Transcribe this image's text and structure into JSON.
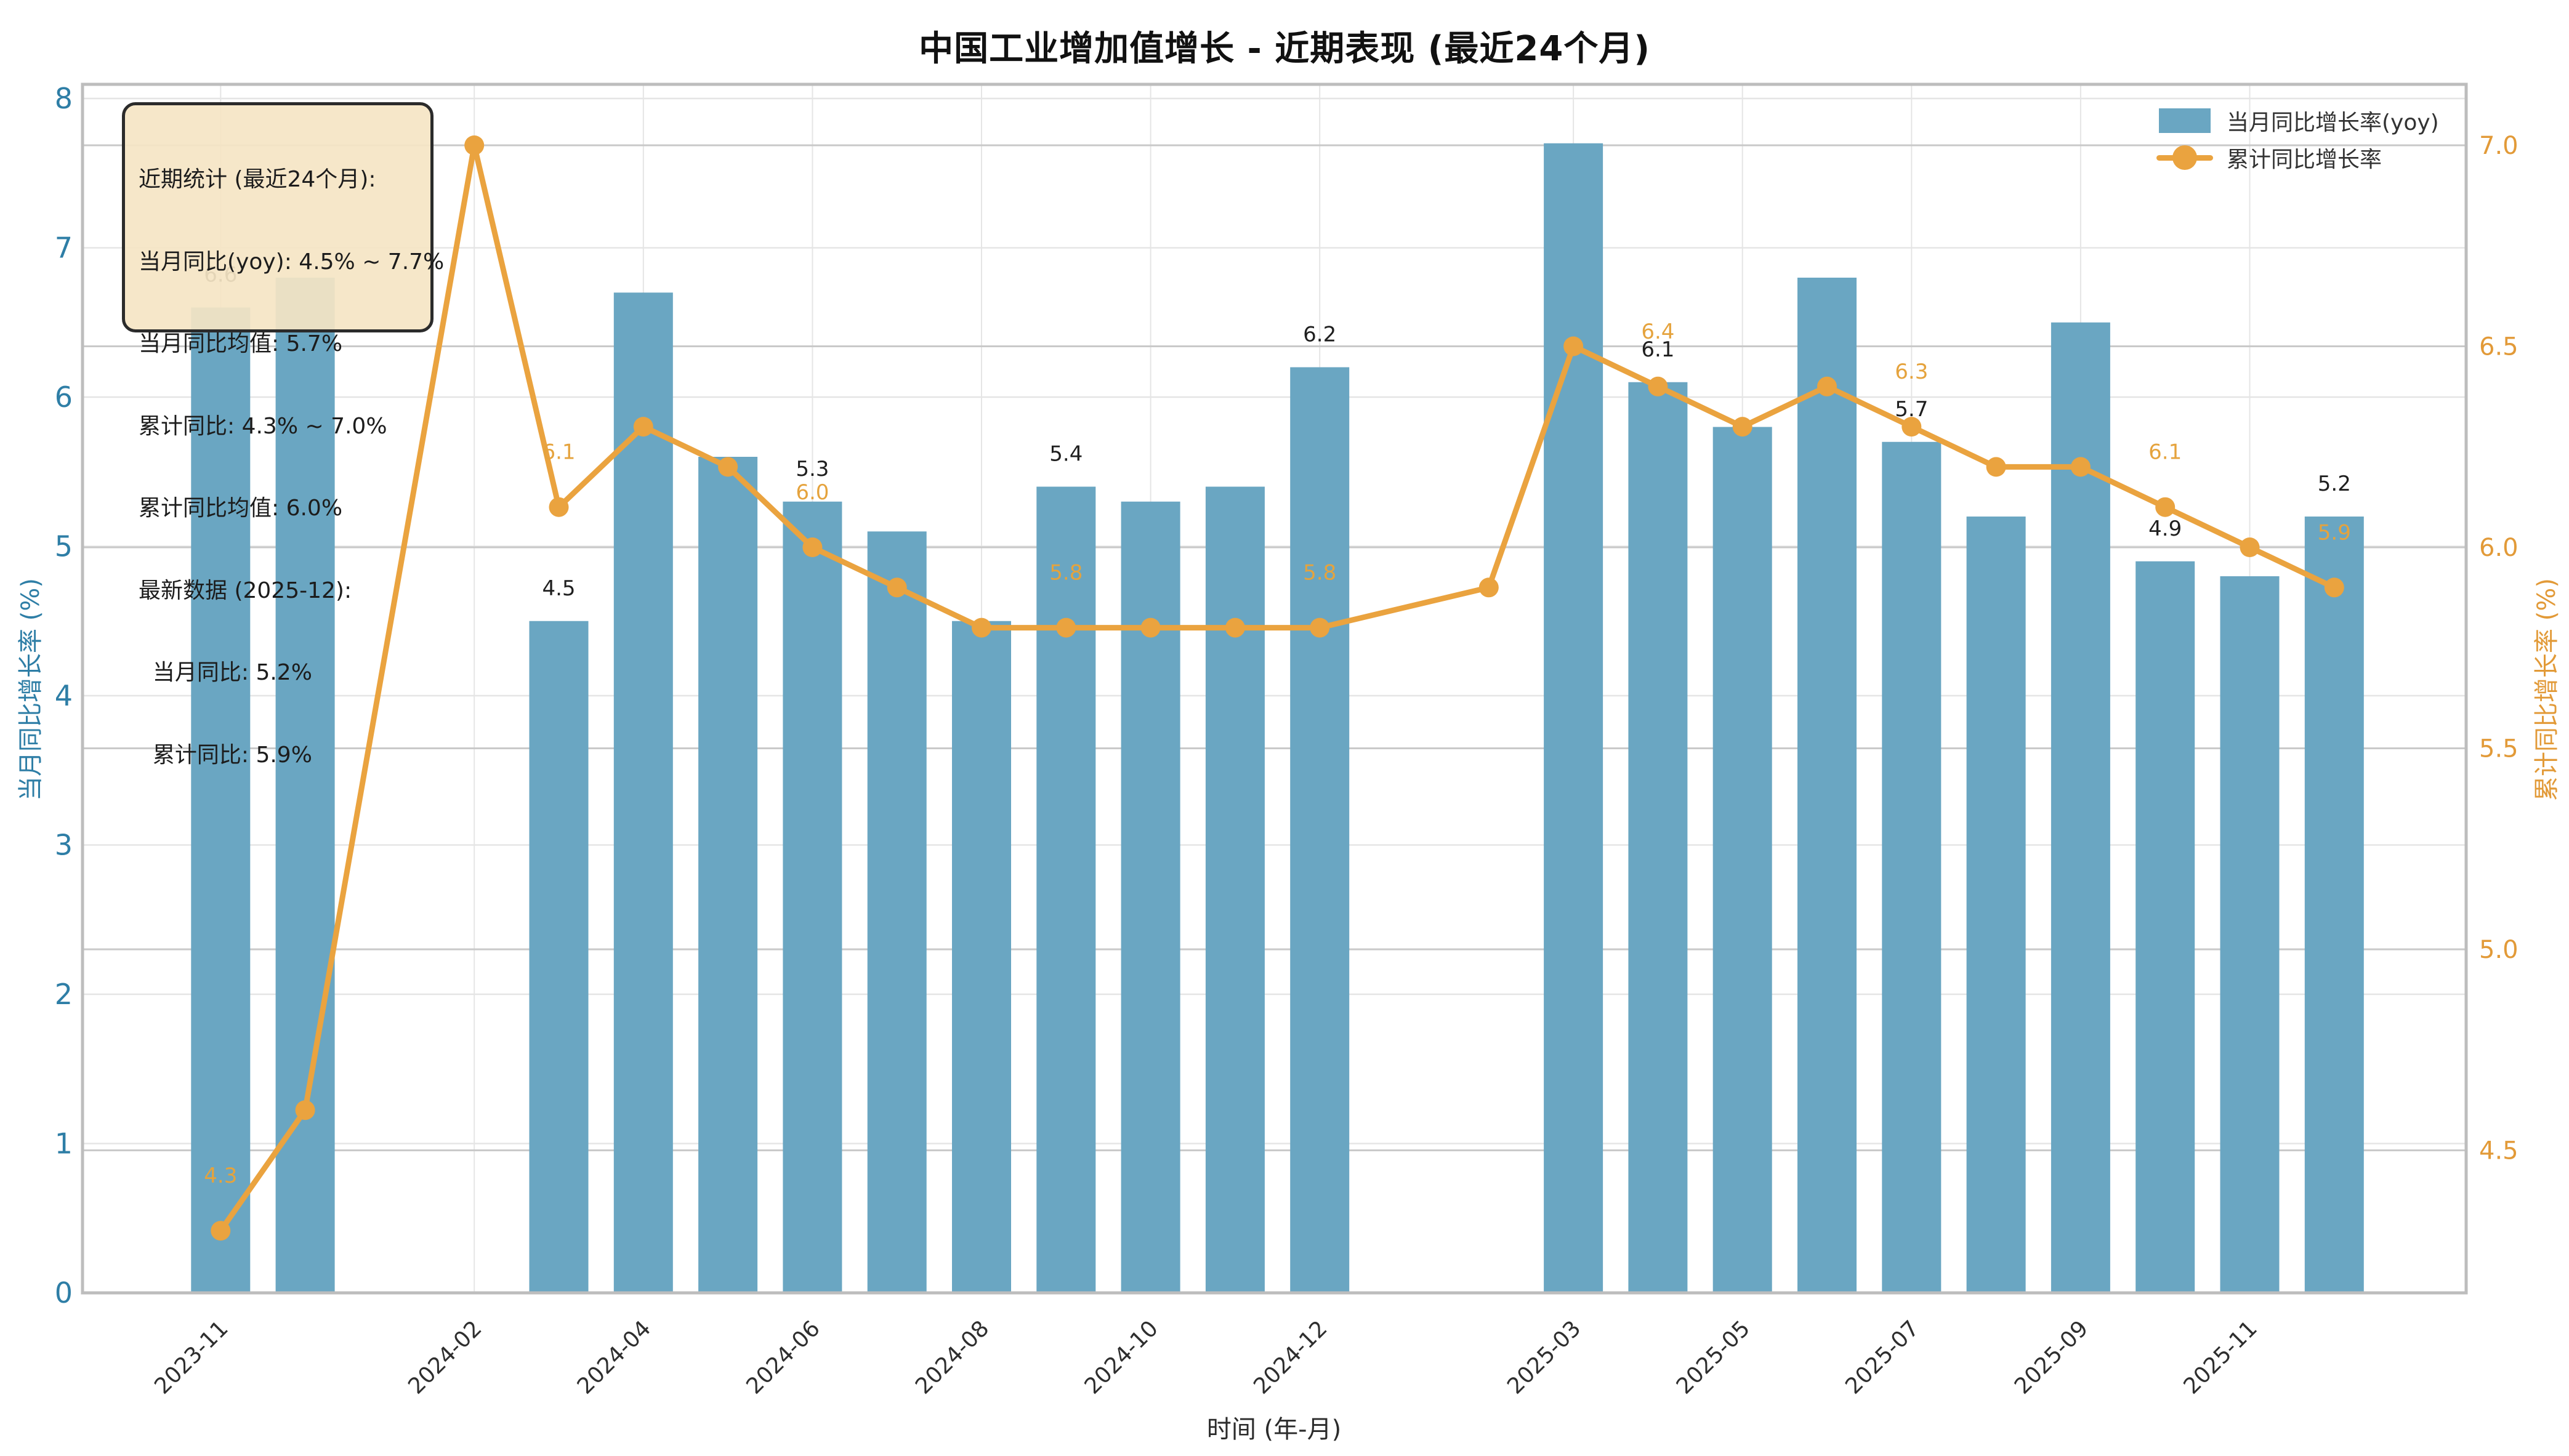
{
  "title": "中国工业增加值增长 - 近期表现 (最近24个月)",
  "stats_box": {
    "lines": [
      "近期统计 (最近24个月):",
      "当月同比(yoy): 4.5% ~ 7.7%",
      "当月同比均值: 5.7%",
      "累计同比: 4.3% ~ 7.0%",
      "累计同比均值: 6.0%",
      "最新数据 (2025-12):",
      "  当月同比: 5.2%",
      "  累计同比: 5.9%"
    ]
  },
  "legend": {
    "items": [
      {
        "label": "当月同比增长率(yoy)",
        "type": "bar"
      },
      {
        "label": "累计同比增长率",
        "type": "line"
      }
    ]
  },
  "axes": {
    "x_label": "时间 (年-月)",
    "y_left_label": "当月同比增长率 (%)",
    "y_right_label": "累计同比增长率 (%)",
    "y_left_ticks": [
      0,
      1,
      2,
      3,
      4,
      5,
      6,
      7,
      8
    ],
    "y_right_ticks": [
      4.5,
      5.0,
      5.5,
      6.0,
      6.5,
      7.0
    ],
    "x_ticks": [
      "2023-11",
      "2024-02",
      "2024-04",
      "2024-06",
      "2024-08",
      "2024-10",
      "2024-12",
      "2025-03",
      "2025-05",
      "2025-07",
      "2025-09",
      "2025-11"
    ]
  },
  "colors": {
    "bar": "#6AA6C2",
    "line": "#EAA33F",
    "left_axis": "#2E7EA6",
    "right_axis": "#E29A38",
    "bar_label": "#1f1f1f",
    "line_label": "#E5A33D",
    "xtick": "#2e2e2e",
    "grid_minor": "#E5E5E5",
    "grid_major": "#C9C9C9",
    "spine": "#BDBDBD"
  },
  "chart_data": {
    "type": "bar",
    "title": "中国工业增加值增长 - 近期表现 (最近24个月)",
    "xlabel": "时间 (年-月)",
    "ylabel_left": "当月同比增长率 (%)",
    "ylabel_right": "累计同比增长率 (%)",
    "ylim_left": [
      0,
      8.1
    ],
    "ylim_right": [
      4.14,
      7.16
    ],
    "grid": true,
    "legend_position": "upper right",
    "categories": [
      "2023-11",
      "2023-12",
      "2024-02",
      "2024-03",
      "2024-04",
      "2024-05",
      "2024-06",
      "2024-07",
      "2024-08",
      "2024-09",
      "2024-10",
      "2024-11",
      "2024-12",
      "2025-02",
      "2025-03",
      "2025-04",
      "2025-05",
      "2025-06",
      "2025-07",
      "2025-08",
      "2025-09",
      "2025-10",
      "2025-11",
      "2025-12"
    ],
    "series": [
      {
        "name": "当月同比增长率(yoy)",
        "type": "bar",
        "axis": "left",
        "values": [
          6.6,
          6.8,
          null,
          4.5,
          6.7,
          5.6,
          5.3,
          5.1,
          4.5,
          5.4,
          5.3,
          5.4,
          6.2,
          null,
          7.7,
          6.1,
          5.8,
          6.8,
          5.7,
          5.2,
          6.5,
          4.9,
          4.8,
          5.2
        ]
      },
      {
        "name": "累计同比增长率",
        "type": "line",
        "axis": "right",
        "values": [
          4.3,
          4.6,
          7.0,
          6.1,
          6.3,
          6.2,
          6.0,
          5.9,
          5.8,
          5.8,
          5.8,
          5.8,
          5.8,
          5.9,
          6.5,
          6.4,
          6.3,
          6.4,
          6.3,
          6.2,
          6.2,
          6.1,
          6.0,
          5.9
        ]
      }
    ],
    "labeled_indices": [
      0,
      3,
      6,
      9,
      12,
      15,
      18,
      21,
      23
    ]
  }
}
